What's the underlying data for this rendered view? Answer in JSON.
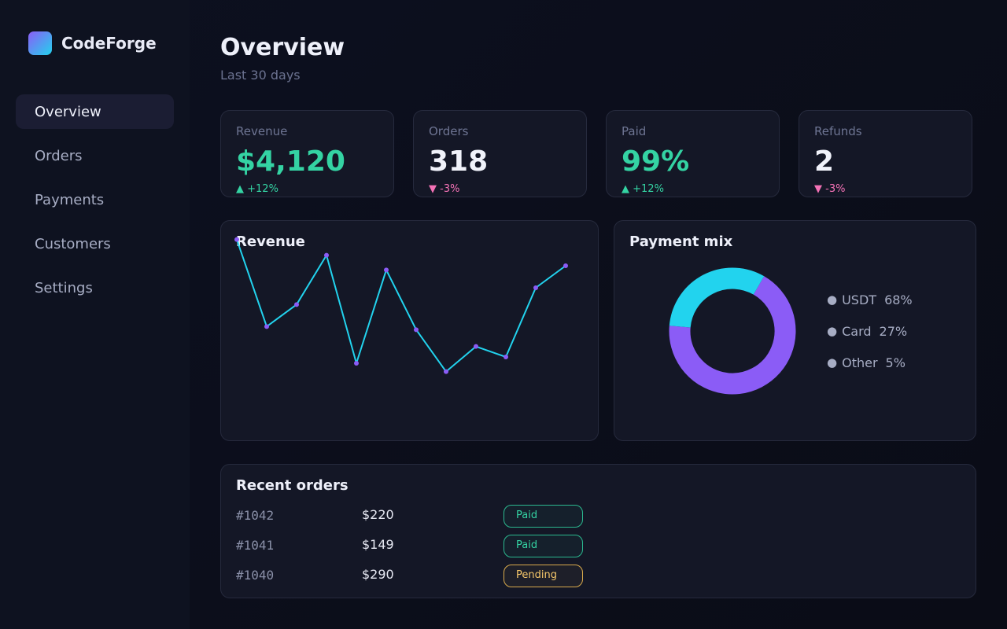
{
  "app": {
    "name": "CodeForge"
  },
  "sidebar": {
    "items": [
      {
        "label": "Overview",
        "active": true
      },
      {
        "label": "Orders",
        "active": false
      },
      {
        "label": "Payments",
        "active": false
      },
      {
        "label": "Customers",
        "active": false
      },
      {
        "label": "Settings",
        "active": false
      }
    ]
  },
  "header": {
    "title": "Overview",
    "subtitle": "Last 30 days"
  },
  "kpis": [
    {
      "label": "Revenue",
      "value": "$4,120",
      "delta": "▲ +12%",
      "trend": "up"
    },
    {
      "label": "Orders",
      "value": "318",
      "delta": "▼ -3%",
      "trend": "down"
    },
    {
      "label": "Paid",
      "value": "99%",
      "delta": "▲ +12%",
      "trend": "up"
    },
    {
      "label": "Refunds",
      "value": "2",
      "delta": "▼ -3%",
      "trend": "down"
    }
  ],
  "revenue_card": {
    "title": "Revenue"
  },
  "payment_card": {
    "title": "Payment mix",
    "legend": [
      {
        "dot": "●",
        "label": "USDT",
        "pct": "68%"
      },
      {
        "dot": "●",
        "label": "Card",
        "pct": "27%"
      },
      {
        "dot": "●",
        "label": "Other",
        "pct": "5%"
      }
    ]
  },
  "orders_card": {
    "title": "Recent orders",
    "rows": [
      {
        "id": "#1042",
        "amount": "$220",
        "status": "Paid"
      },
      {
        "id": "#1041",
        "amount": "$149",
        "status": "Paid"
      },
      {
        "id": "#1040",
        "amount": "$290",
        "status": "Pending"
      }
    ]
  },
  "colors": {
    "line": "#22d3ee",
    "point": "#8b5cf6",
    "donut_primary": "#8b5cf6",
    "donut_secondary": "#22d3ee",
    "positive": "#34d3a3",
    "negative": "#f472b6",
    "pending": "#f5c76a"
  },
  "chart_data": [
    {
      "type": "line",
      "title": "Revenue",
      "x": [
        1,
        2,
        3,
        4,
        5,
        6,
        7,
        8,
        9,
        10,
        11,
        12
      ],
      "series": [
        {
          "values": [
            163,
            80,
            101,
            148,
            45,
            134,
            77,
            37,
            61,
            51,
            117,
            138
          ]
        }
      ],
      "ylim": [
        0,
        180
      ],
      "grid": false
    },
    {
      "type": "pie",
      "title": "Payment mix",
      "categories": [
        "USDT",
        "Card",
        "Other"
      ],
      "values": [
        68,
        27,
        5
      ]
    }
  ]
}
